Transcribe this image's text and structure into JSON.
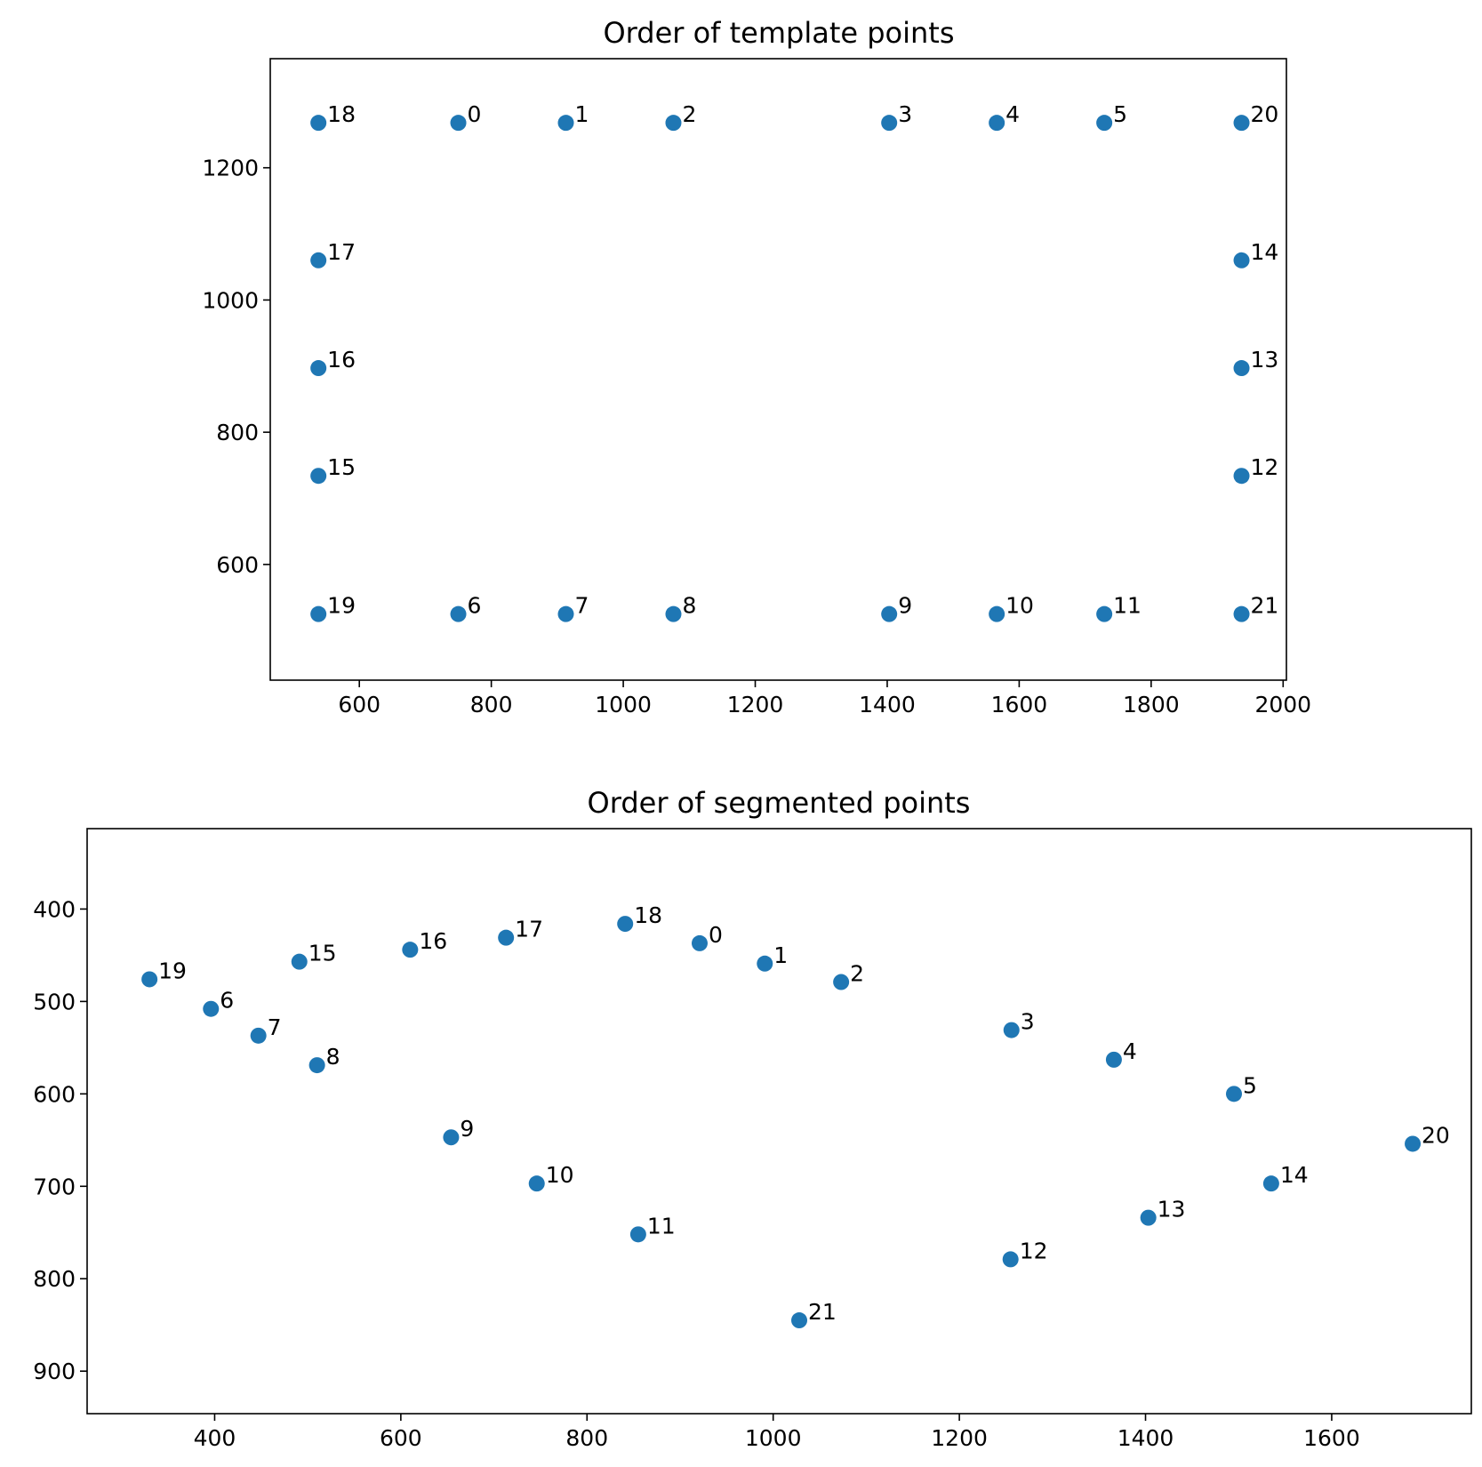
{
  "chart_data": [
    {
      "type": "scatter",
      "title": "Order of template points",
      "xlabel": "",
      "ylabel": "",
      "xlim": [
        465,
        2005
      ],
      "ylim": [
        425,
        1365
      ],
      "y_inverted": false,
      "grid": false,
      "marker_color": "#1f77b4",
      "x_ticks": [
        600,
        800,
        1000,
        1200,
        1400,
        1600,
        1800,
        2000
      ],
      "y_ticks": [
        600,
        800,
        1000,
        1200
      ],
      "points": [
        {
          "label": "0",
          "x": 750,
          "y": 1268
        },
        {
          "label": "1",
          "x": 913,
          "y": 1268
        },
        {
          "label": "2",
          "x": 1076,
          "y": 1268
        },
        {
          "label": "3",
          "x": 1403,
          "y": 1268
        },
        {
          "label": "4",
          "x": 1566,
          "y": 1268
        },
        {
          "label": "5",
          "x": 1729,
          "y": 1268
        },
        {
          "label": "6",
          "x": 750,
          "y": 525
        },
        {
          "label": "7",
          "x": 913,
          "y": 525
        },
        {
          "label": "8",
          "x": 1076,
          "y": 525
        },
        {
          "label": "9",
          "x": 1403,
          "y": 525
        },
        {
          "label": "10",
          "x": 1566,
          "y": 525
        },
        {
          "label": "11",
          "x": 1729,
          "y": 525
        },
        {
          "label": "12",
          "x": 1937,
          "y": 734
        },
        {
          "label": "13",
          "x": 1937,
          "y": 897
        },
        {
          "label": "14",
          "x": 1937,
          "y": 1060
        },
        {
          "label": "15",
          "x": 538,
          "y": 734
        },
        {
          "label": "16",
          "x": 538,
          "y": 897
        },
        {
          "label": "17",
          "x": 538,
          "y": 1060
        },
        {
          "label": "18",
          "x": 538,
          "y": 1268
        },
        {
          "label": "19",
          "x": 538,
          "y": 525
        },
        {
          "label": "20",
          "x": 1937,
          "y": 1268
        },
        {
          "label": "21",
          "x": 1937,
          "y": 525
        }
      ]
    },
    {
      "type": "scatter",
      "title": "Order of segmented points",
      "xlabel": "",
      "ylabel": "",
      "xlim": [
        263,
        1750
      ],
      "ylim": [
        946,
        313
      ],
      "y_inverted": true,
      "grid": false,
      "marker_color": "#1f77b4",
      "x_ticks": [
        400,
        600,
        800,
        1000,
        1200,
        1400,
        1600
      ],
      "y_ticks": [
        400,
        500,
        600,
        700,
        800,
        900
      ],
      "points": [
        {
          "label": "0",
          "x": 921,
          "y": 437
        },
        {
          "label": "1",
          "x": 991,
          "y": 459
        },
        {
          "label": "2",
          "x": 1073,
          "y": 479
        },
        {
          "label": "3",
          "x": 1256,
          "y": 531
        },
        {
          "label": "4",
          "x": 1366,
          "y": 563
        },
        {
          "label": "5",
          "x": 1495,
          "y": 600
        },
        {
          "label": "6",
          "x": 396,
          "y": 508
        },
        {
          "label": "7",
          "x": 447,
          "y": 537
        },
        {
          "label": "8",
          "x": 510,
          "y": 569
        },
        {
          "label": "9",
          "x": 654,
          "y": 647
        },
        {
          "label": "10",
          "x": 746,
          "y": 697
        },
        {
          "label": "11",
          "x": 855,
          "y": 752
        },
        {
          "label": "12",
          "x": 1255,
          "y": 779
        },
        {
          "label": "13",
          "x": 1403,
          "y": 734
        },
        {
          "label": "14",
          "x": 1535,
          "y": 697
        },
        {
          "label": "15",
          "x": 491,
          "y": 457
        },
        {
          "label": "16",
          "x": 610,
          "y": 444
        },
        {
          "label": "17",
          "x": 713,
          "y": 431
        },
        {
          "label": "18",
          "x": 841,
          "y": 416
        },
        {
          "label": "19",
          "x": 330,
          "y": 476
        },
        {
          "label": "20",
          "x": 1687,
          "y": 654
        },
        {
          "label": "21",
          "x": 1028,
          "y": 845
        }
      ]
    }
  ]
}
